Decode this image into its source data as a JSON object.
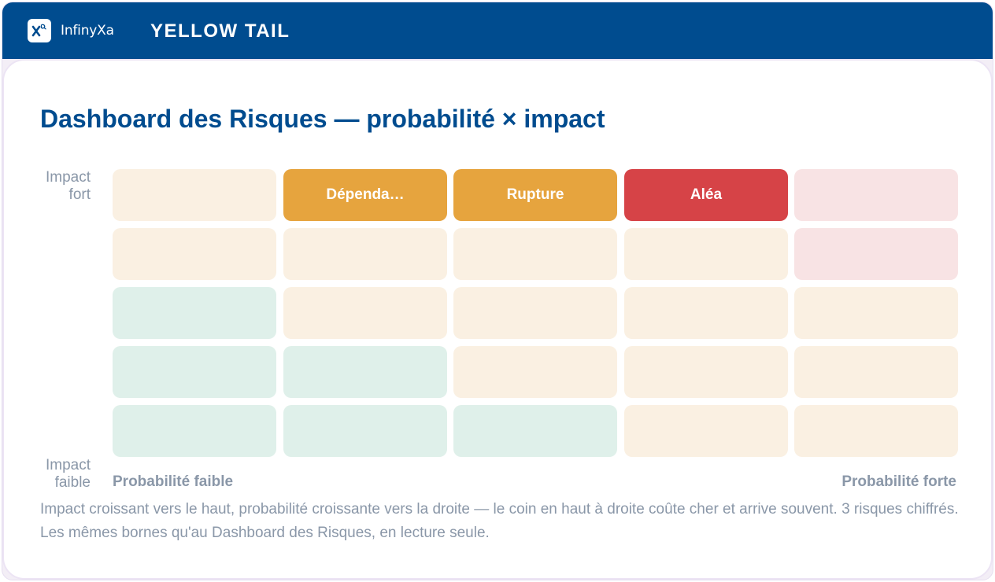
{
  "header": {
    "logo_icon": "infinyxa-logo-icon",
    "brand": "InfinyXa",
    "app_title": "YELLOW TAIL",
    "color": "#004c8f"
  },
  "main": {
    "title": "Dashboard des Risques — probabilité × impact",
    "y_axis": {
      "top": "Impact\nfort",
      "bottom": "Impact\nfaible"
    },
    "x_axis": {
      "left": "Probabilité faible",
      "right": "Probabilité forte"
    },
    "caption": "Impact croissant vers le haut, probabilité croissante vers la droite — le coin en haut à droite coûte cher et arrive souvent. 3 risques chiffrés. Les mêmes bornes qu'au Dashboard des Risques, en lecture seule."
  },
  "matrix": {
    "colors": {
      "cream": "#faf0e2",
      "mint": "#dff0ea",
      "rose": "#f8e3e4",
      "amber": "#e6a43e",
      "red": "#d64347"
    },
    "rows": [
      [
        {
          "tone": "cream",
          "label": ""
        },
        {
          "tone": "amber",
          "label": "Dépenda…"
        },
        {
          "tone": "amber",
          "label": "Rupture"
        },
        {
          "tone": "red",
          "label": "Aléa"
        },
        {
          "tone": "rose",
          "label": ""
        }
      ],
      [
        {
          "tone": "cream",
          "label": ""
        },
        {
          "tone": "cream",
          "label": ""
        },
        {
          "tone": "cream",
          "label": ""
        },
        {
          "tone": "cream",
          "label": ""
        },
        {
          "tone": "rose",
          "label": ""
        }
      ],
      [
        {
          "tone": "mint",
          "label": ""
        },
        {
          "tone": "cream",
          "label": ""
        },
        {
          "tone": "cream",
          "label": ""
        },
        {
          "tone": "cream",
          "label": ""
        },
        {
          "tone": "cream",
          "label": ""
        }
      ],
      [
        {
          "tone": "mint",
          "label": ""
        },
        {
          "tone": "mint",
          "label": ""
        },
        {
          "tone": "cream",
          "label": ""
        },
        {
          "tone": "cream",
          "label": ""
        },
        {
          "tone": "cream",
          "label": ""
        }
      ],
      [
        {
          "tone": "mint",
          "label": ""
        },
        {
          "tone": "mint",
          "label": ""
        },
        {
          "tone": "mint",
          "label": ""
        },
        {
          "tone": "cream",
          "label": ""
        },
        {
          "tone": "cream",
          "label": ""
        }
      ]
    ]
  }
}
